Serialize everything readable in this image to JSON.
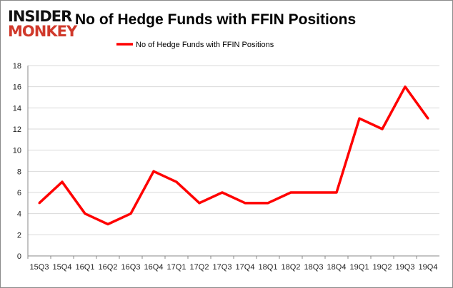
{
  "logo": {
    "line1": "INSIDER",
    "line2": "MONKEY",
    "colors": {
      "line1": "#111111",
      "line2": "#d0392b"
    }
  },
  "chart_data": {
    "type": "line",
    "title": "No of Hedge Funds with FFIN Positions",
    "categories": [
      "15Q3",
      "15Q4",
      "16Q1",
      "16Q2",
      "16Q3",
      "16Q4",
      "17Q1",
      "17Q2",
      "17Q3",
      "17Q4",
      "18Q1",
      "18Q2",
      "18Q3",
      "18Q4",
      "19Q1",
      "19Q2",
      "19Q3",
      "19Q4"
    ],
    "series": [
      {
        "name": "No of Hedge Funds with FFIN Positions",
        "color": "#ff0000",
        "values": [
          5,
          7,
          4,
          3,
          4,
          8,
          7,
          5,
          6,
          5,
          5,
          6,
          6,
          6,
          13,
          12,
          16,
          13
        ]
      }
    ],
    "ylim": [
      0,
      18
    ],
    "yticks": [
      0,
      2,
      4,
      6,
      8,
      10,
      12,
      14,
      16,
      18
    ],
    "grid": true,
    "legend": "top-center",
    "xlabel": "",
    "ylabel": ""
  }
}
